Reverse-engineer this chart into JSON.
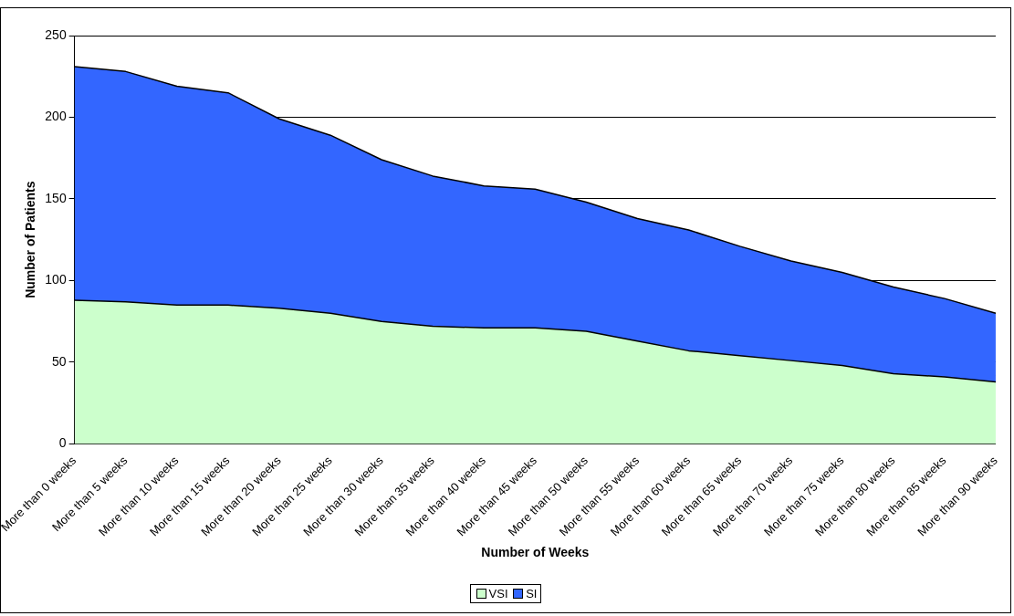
{
  "chart_data": {
    "type": "area",
    "stacked": true,
    "xlabel": "Number of Weeks",
    "ylabel": "Number of Patients",
    "categories": [
      "More than 0 weeks",
      "More than 5 weeks",
      "More than 10 weeks",
      "More than 15 weeks",
      "More than 20 weeks",
      "More than 25 weeks",
      "More than 30 weeks",
      "More than 35 weeks",
      "More than 40 weeks",
      "More than 45 weeks",
      "More than 50 weeks",
      "More than 55 weeks",
      "More than 60 weeks",
      "More than 65 weeks",
      "More than 70 weeks",
      "More than 75 weeks",
      "More than 80 weeks",
      "More than 85 weeks",
      "More than 90 weeks"
    ],
    "series": [
      {
        "name": "VSI",
        "color": "#ccffcc",
        "values": [
          88,
          87,
          85,
          85,
          83,
          80,
          75,
          72,
          71,
          71,
          69,
          63,
          57,
          54,
          51,
          48,
          43,
          41,
          38
        ]
      },
      {
        "name": "SI",
        "color": "#3366ff",
        "values": [
          143,
          141,
          134,
          130,
          116,
          109,
          99,
          92,
          87,
          85,
          79,
          75,
          74,
          67,
          61,
          57,
          53,
          48,
          42
        ]
      }
    ],
    "ylim": [
      0,
      250
    ],
    "yticks": [
      0,
      50,
      100,
      150,
      200,
      250
    ],
    "grid": "y",
    "legend": "bottom",
    "marker": "none"
  }
}
